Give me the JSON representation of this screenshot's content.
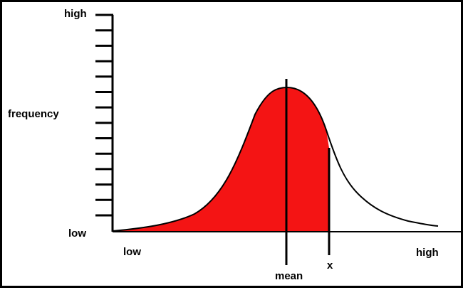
{
  "y_axis": {
    "top_label": "high",
    "bottom_label": "low",
    "title": "frequency",
    "tick_count": 14
  },
  "x_axis": {
    "left_label": "low",
    "right_label": "high"
  },
  "markers": {
    "mean_label": "mean",
    "x_label": "x"
  },
  "colors": {
    "fill": "#f41414",
    "line": "#000000",
    "background": "#ffffff"
  }
}
